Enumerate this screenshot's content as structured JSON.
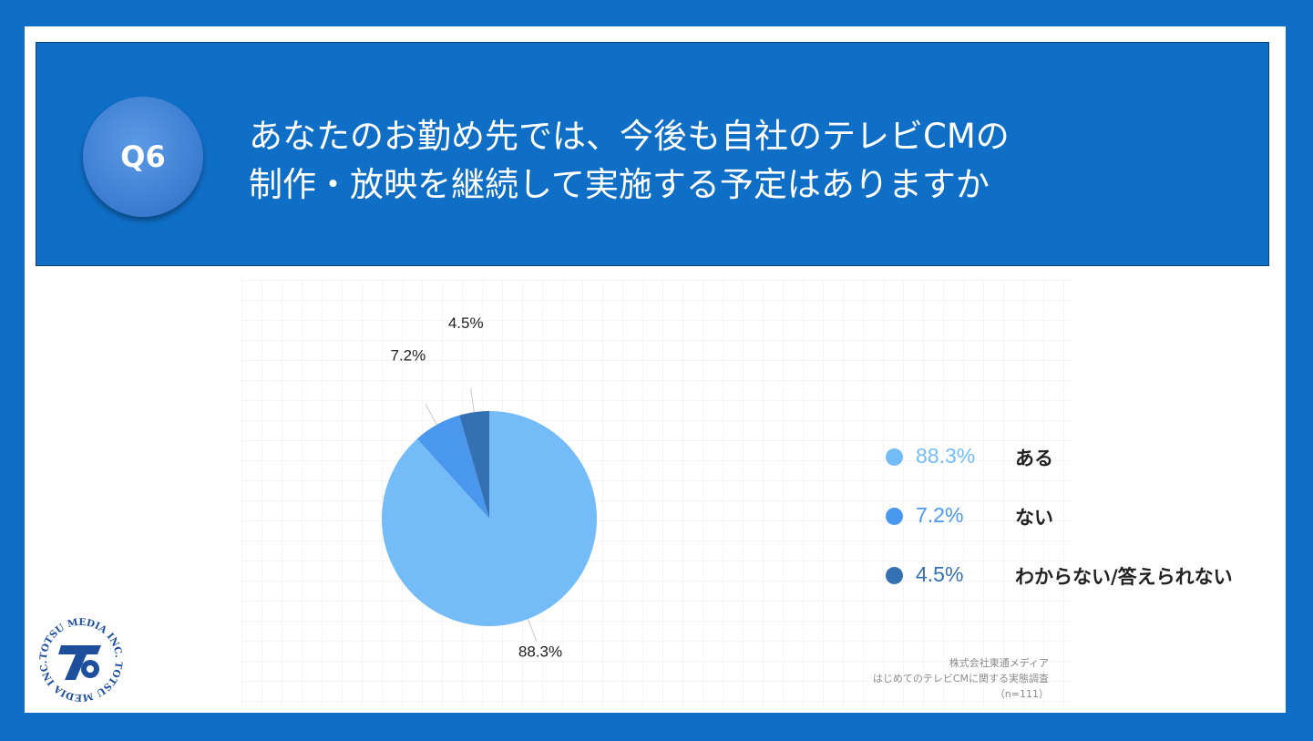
{
  "question": {
    "number": "Q6",
    "line1": "あなたのお勤め先では、今後も自社のテレビCMの",
    "line2": "制作・放映を継続して実施する予定はありますか"
  },
  "colors": {
    "background": "#0f6ec6",
    "aru": "#74bcf8",
    "nai": "#4a97ee",
    "wakaranai": "#3570b3"
  },
  "chart_data": {
    "type": "pie",
    "slices": [
      {
        "label": "ある",
        "value": 88.3,
        "value_label": "88.3%",
        "color": "#74bcf8"
      },
      {
        "label": "ない",
        "value": 7.2,
        "value_label": "7.2%",
        "color": "#4a97ee"
      },
      {
        "label": "わからない/答えられない",
        "value": 4.5,
        "value_label": "4.5%",
        "color": "#3570b3"
      }
    ],
    "legend_placement": "right",
    "grid": true
  },
  "source": {
    "line1": "株式会社東通メディア",
    "line2": "はじめてのテレビCMに関する実態調査",
    "line3": "（n=111）"
  },
  "logo": {
    "ring_text": "TOTSU MEDIA INC. TOTSU MEDIA INC. ",
    "mark": "TS"
  }
}
